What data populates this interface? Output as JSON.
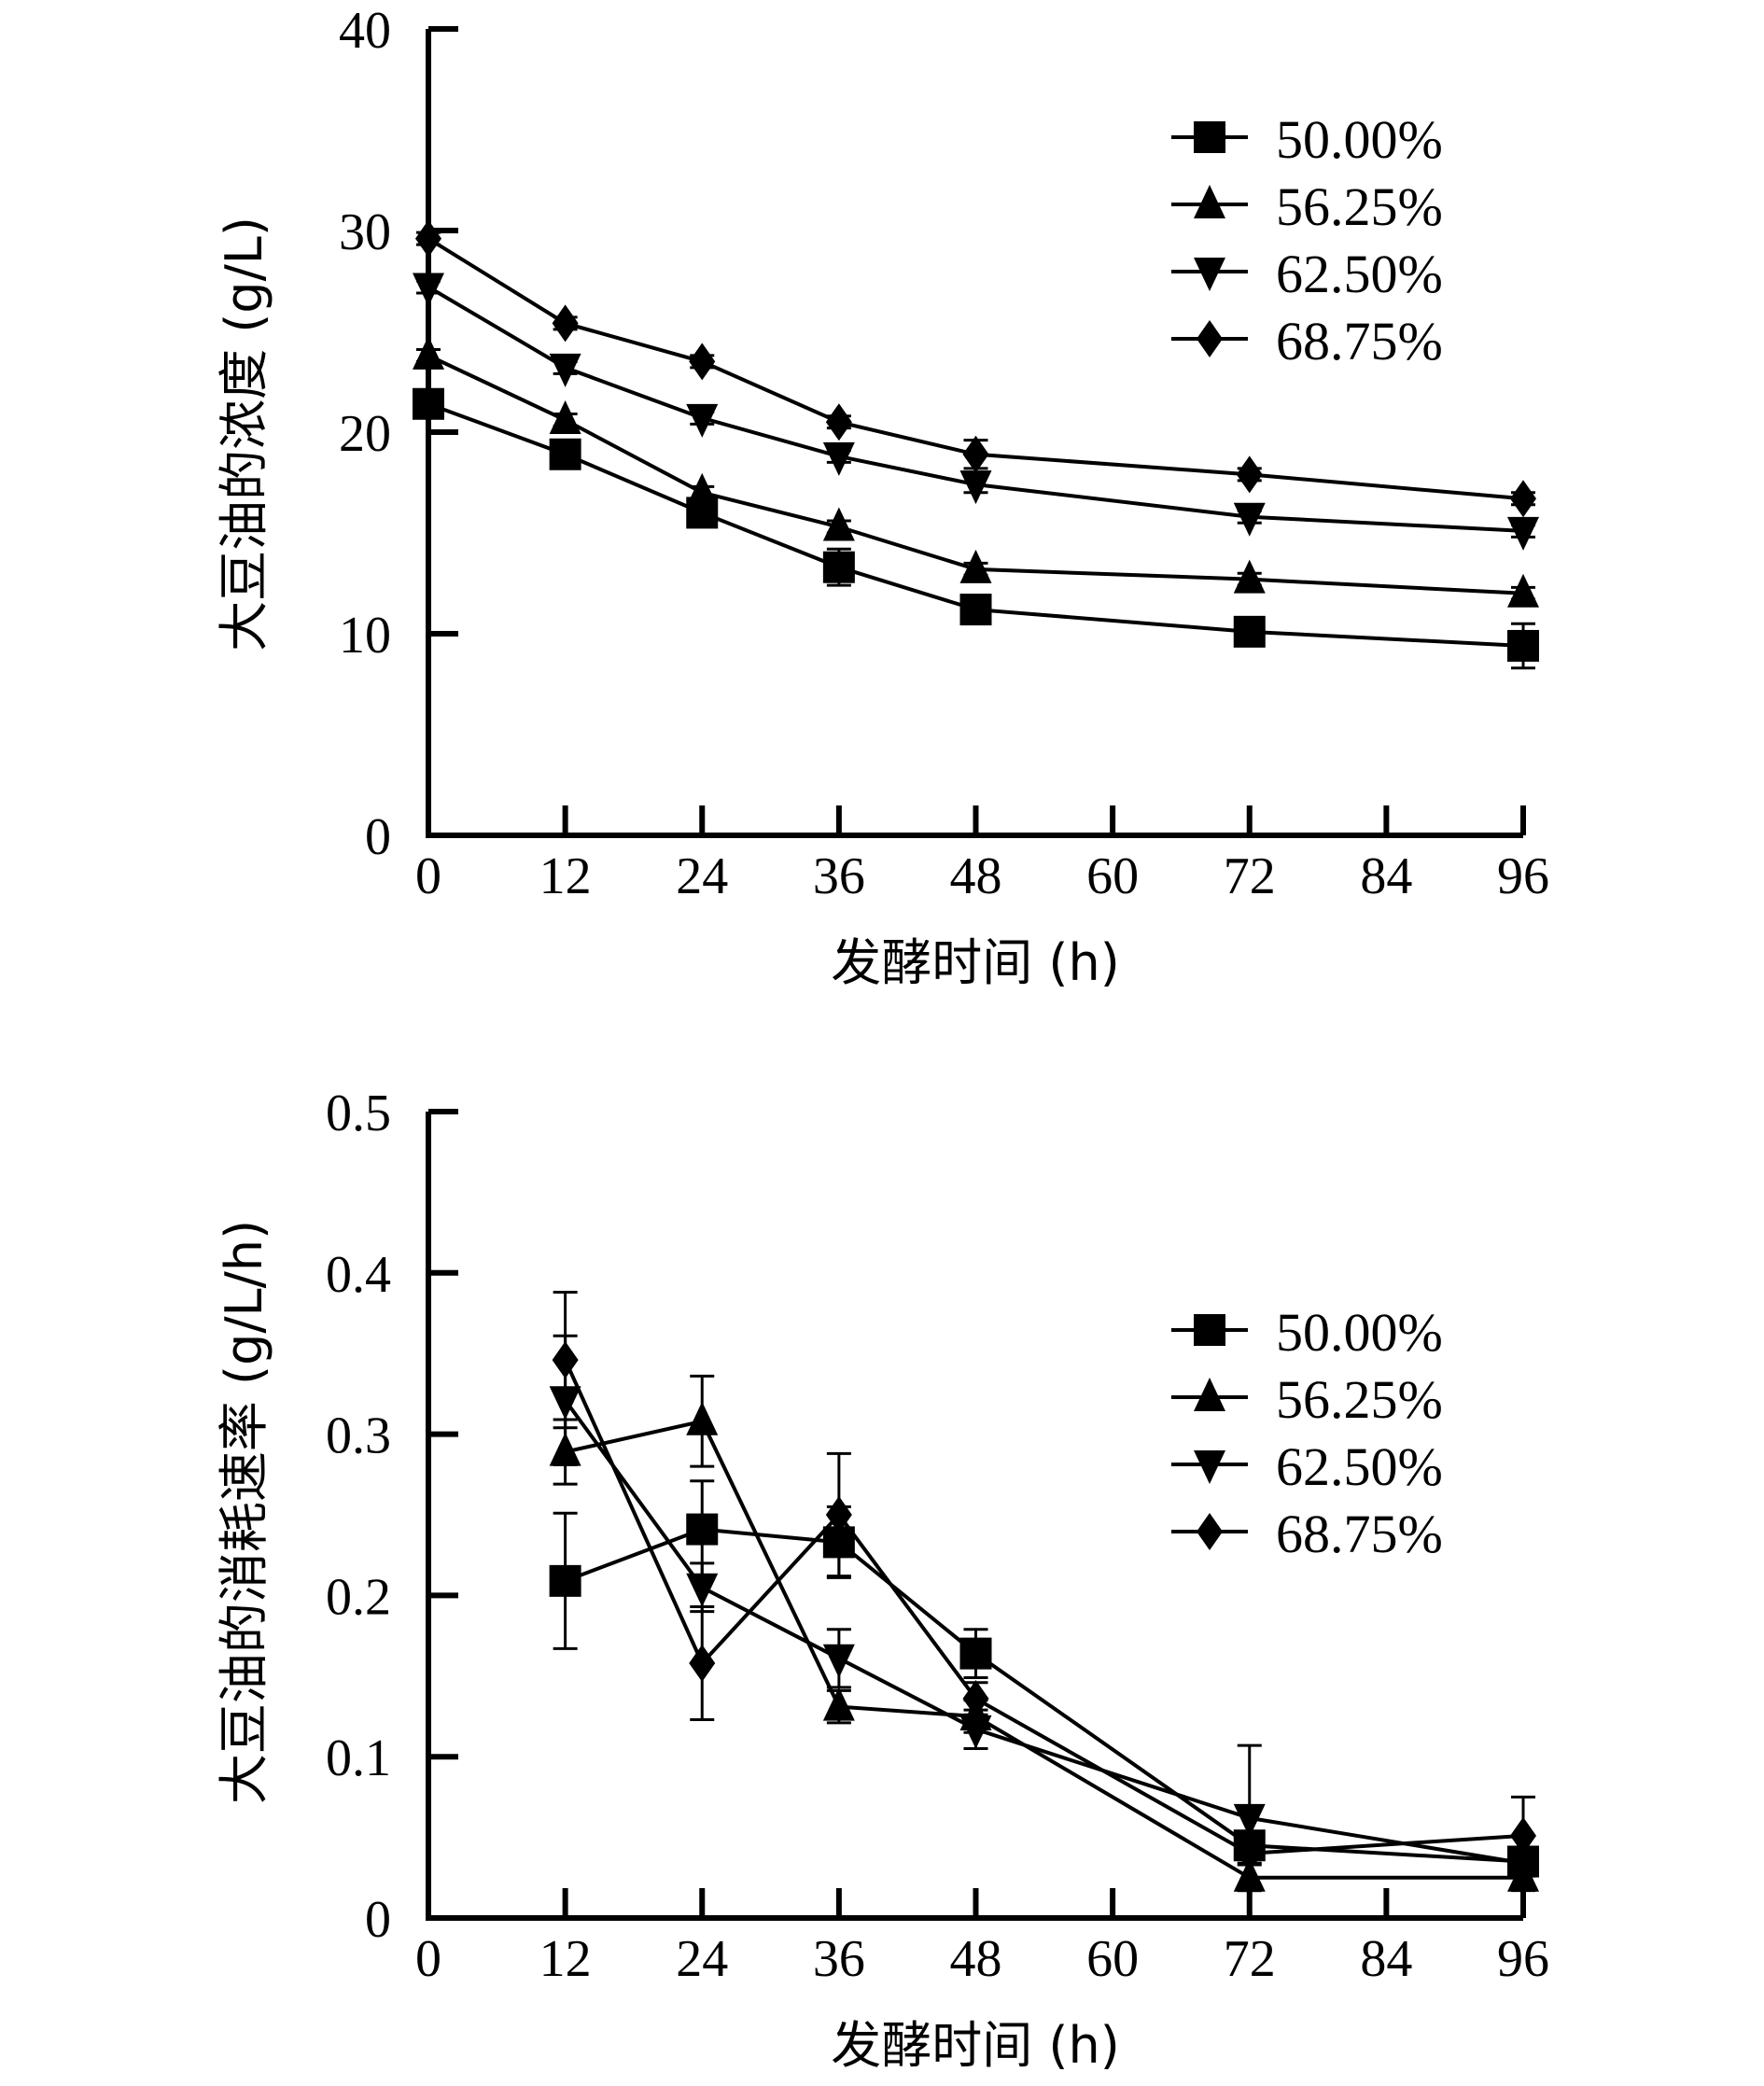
{
  "chart_data": [
    {
      "type": "line",
      "title": "",
      "xlabel": "发酵时间 (h)",
      "ylabel": "大豆油的浓度 (g/L)",
      "xlim": [
        0,
        96
      ],
      "ylim": [
        0,
        40
      ],
      "x_ticks": [
        "0",
        "12",
        "24",
        "36",
        "48",
        "60",
        "72",
        "84",
        "96"
      ],
      "y_ticks": [
        "0",
        "10",
        "20",
        "30",
        "40"
      ],
      "grid": false,
      "legend_position": "top-right",
      "x": [
        0,
        12,
        24,
        36,
        48,
        72,
        96
      ],
      "series": [
        {
          "name": "50.00%",
          "marker": "square",
          "values": [
            21.4,
            18.9,
            16.0,
            13.3,
            11.2,
            10.1,
            9.4
          ],
          "errors": [
            0.4,
            0.4,
            0.4,
            0.9,
            0.6,
            0.3,
            1.1
          ]
        },
        {
          "name": "56.25%",
          "marker": "triangle-up",
          "values": [
            23.8,
            20.6,
            17.0,
            15.3,
            13.2,
            12.7,
            12.0
          ],
          "errors": [
            0.3,
            0.3,
            0.3,
            0.3,
            0.3,
            0.3,
            0.3
          ]
        },
        {
          "name": "62.50%",
          "marker": "triangle-down",
          "values": [
            27.2,
            23.2,
            20.7,
            18.8,
            17.4,
            15.8,
            15.1
          ],
          "errors": [
            0.3,
            0.3,
            0.3,
            0.3,
            0.4,
            0.3,
            0.3
          ]
        },
        {
          "name": "68.75%",
          "marker": "diamond",
          "values": [
            29.6,
            25.4,
            23.5,
            20.5,
            18.9,
            17.9,
            16.7
          ],
          "errors": [
            0.3,
            0.3,
            0.3,
            0.3,
            0.7,
            0.3,
            0.3
          ]
        }
      ]
    },
    {
      "type": "line",
      "title": "",
      "xlabel": "发酵时间 (h)",
      "ylabel": "大豆油的消耗速率 (g/L/h)",
      "xlim": [
        0,
        96
      ],
      "ylim": [
        0,
        0.5
      ],
      "x_ticks": [
        "0",
        "12",
        "24",
        "36",
        "48",
        "60",
        "72",
        "84",
        "96"
      ],
      "y_ticks": [
        "0",
        "0.1",
        "0.2",
        "0.3",
        "0.4",
        "0.5"
      ],
      "grid": false,
      "legend_position": "top-right",
      "x": [
        12,
        24,
        36,
        48,
        72,
        96
      ],
      "series": [
        {
          "name": "50.00%",
          "marker": "square",
          "values": [
            0.209,
            0.241,
            0.233,
            0.164,
            0.045,
            0.035
          ],
          "errors": [
            0.042,
            0.03,
            0.022,
            0.015,
            0.005,
            0.005
          ]
        },
        {
          "name": "56.25%",
          "marker": "triangle-up",
          "values": [
            0.289,
            0.308,
            0.131,
            0.125,
            0.025,
            0.025
          ],
          "errors": [
            0.02,
            0.028,
            0.01,
            0.01,
            0.008,
            0.008
          ]
        },
        {
          "name": "62.50%",
          "marker": "triangle-down",
          "values": [
            0.321,
            0.205,
            0.161,
            0.117,
            0.062,
            0.034
          ],
          "errors": [
            0.04,
            0.015,
            0.018,
            0.012,
            0.045,
            0.008
          ]
        },
        {
          "name": "68.75%",
          "marker": "diamond",
          "values": [
            0.346,
            0.158,
            0.25,
            0.136,
            0.04,
            0.051
          ],
          "errors": [
            0.042,
            0.035,
            0.038,
            0.01,
            0.006,
            0.024
          ]
        }
      ]
    }
  ]
}
